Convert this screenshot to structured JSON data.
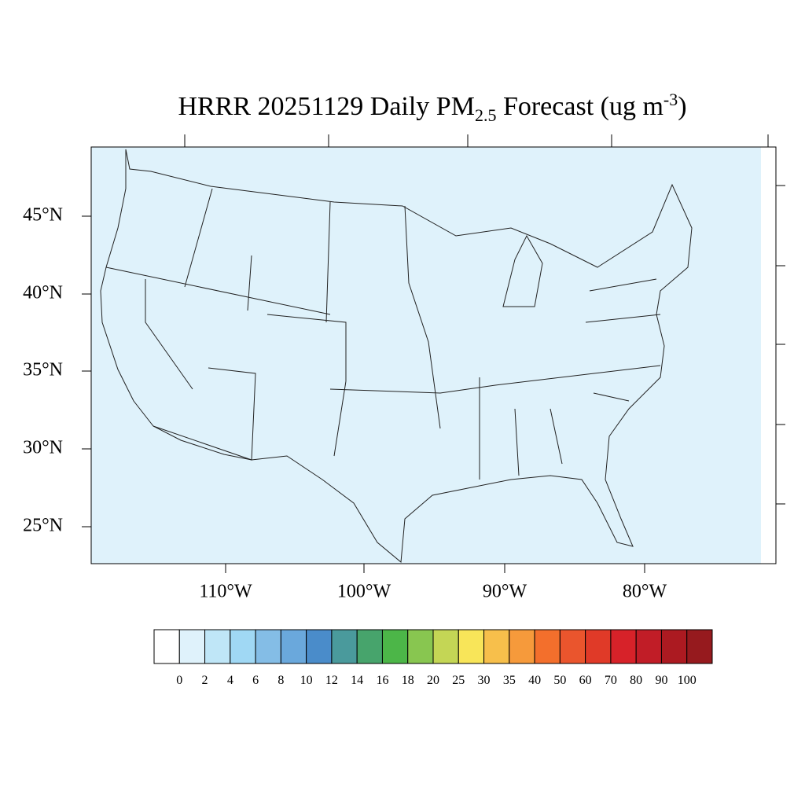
{
  "title": {
    "main": "HRRR 20251129 Daily PM",
    "sub": "2.5",
    "rest": " Forecast (ug m",
    "sup": "-3",
    "end": ")"
  },
  "latitude_labels": [
    "45°N",
    "40°N",
    "35°N",
    "30°N",
    "25°N"
  ],
  "longitude_labels": [
    "110°W",
    "100°W",
    "90°W",
    "80°W"
  ],
  "colorbar": {
    "labels": [
      "0",
      "2",
      "4",
      "6",
      "8",
      "10",
      "12",
      "14",
      "16",
      "18",
      "20",
      "25",
      "30",
      "35",
      "40",
      "50",
      "60",
      "70",
      "80",
      "90",
      "100"
    ],
    "colors": [
      "#ffffff",
      "#dff2fb",
      "#bfe6f7",
      "#a0d8f4",
      "#84bde6",
      "#6aa8dc",
      "#4a8cca",
      "#4a9a9c",
      "#47a46c",
      "#4cb648",
      "#88c650",
      "#c4d655",
      "#f8e559",
      "#f7bf4b",
      "#f69a3b",
      "#f36f2c",
      "#ea552d",
      "#e03a28",
      "#d72229",
      "#c11d27",
      "#ac1a21",
      "#961a1e"
    ]
  }
}
